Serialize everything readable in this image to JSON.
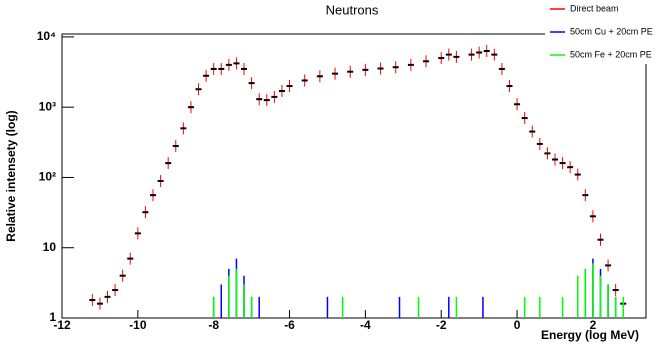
{
  "chart_data": {
    "type": "scatter",
    "title": "Neutrons",
    "x_label": "Energy (log MeV)",
    "y_label": "Relative intensety (log)",
    "log_y": true,
    "xlim": [
      -12,
      3.4
    ],
    "ylim": [
      1,
      11000
    ],
    "xticks": [
      -12,
      -10,
      -8,
      -6,
      -4,
      -2,
      0,
      2
    ],
    "yticks": [
      1,
      10,
      {
        "value": 100,
        "label": "10²"
      },
      {
        "value": 1000,
        "label": "10³"
      },
      {
        "value": 10000,
        "label": "10⁴"
      }
    ],
    "series": [
      {
        "name": "Direct beam",
        "color": "#ff0000",
        "x": [
          -11.2,
          -11,
          -10.8,
          -10.6,
          -10.4,
          -10.2,
          -10,
          -9.8,
          -9.6,
          -9.4,
          -9.2,
          -9,
          -8.8,
          -8.6,
          -8.4,
          -8.2,
          -8,
          -7.8,
          -7.6,
          -7.4,
          -7.2,
          -7,
          -6.8,
          -6.6,
          -6.4,
          -6.2,
          -6,
          -5.6,
          -5.2,
          -4.8,
          -4.4,
          -4,
          -3.6,
          -3.2,
          -2.8,
          -2.4,
          -2,
          -1.8,
          -1.6,
          -1.2,
          -1,
          -0.8,
          -0.6,
          -0.4,
          -0.2,
          0,
          0.2,
          0.4,
          0.6,
          0.8,
          1,
          1.2,
          1.4,
          1.6,
          1.8,
          2,
          2.2,
          2.4,
          2.6,
          2.8
        ],
        "values": [
          1.8,
          1.6,
          2,
          2.5,
          4,
          7,
          16,
          32,
          56,
          89,
          160,
          280,
          500,
          1000,
          1800,
          2800,
          3500,
          3500,
          4000,
          4200,
          3500,
          2200,
          1300,
          1260,
          1400,
          1700,
          2000,
          2400,
          2750,
          3000,
          3200,
          3400,
          3550,
          3700,
          4000,
          4500,
          5000,
          5600,
          5200,
          5600,
          6000,
          6300,
          5600,
          3500,
          2000,
          1100,
          700,
          450,
          300,
          220,
          180,
          160,
          140,
          110,
          56,
          28,
          13,
          5.6,
          2.5,
          1.6
        ]
      },
      {
        "name": "50cm Cu + 20cm PE",
        "color": "#0000ff",
        "x": [
          -8,
          -7.8,
          -7.6,
          -7.4,
          -7.2,
          -7,
          -6.8,
          -5,
          -3.1,
          -1.8,
          -0.9,
          1.6,
          1.8,
          2,
          2.2,
          2.4,
          2.6
        ],
        "values": [
          2,
          3,
          5,
          7,
          4,
          2,
          2,
          2,
          2,
          2,
          2,
          3,
          5,
          7,
          5,
          3,
          2
        ]
      },
      {
        "name": "50cm Fe + 20cm PE",
        "color": "#00ff00",
        "x": [
          -8,
          -7.6,
          -7.4,
          -7.2,
          -7,
          -4.6,
          -2.6,
          -1.6,
          0.2,
          0.6,
          1.2,
          1.6,
          1.8,
          2,
          2.2,
          2.4,
          2.6,
          2.8
        ],
        "values": [
          2,
          4,
          5,
          3,
          2,
          2,
          2,
          2,
          2,
          2,
          2,
          4,
          5,
          6,
          4,
          3,
          2,
          2
        ]
      }
    ]
  }
}
